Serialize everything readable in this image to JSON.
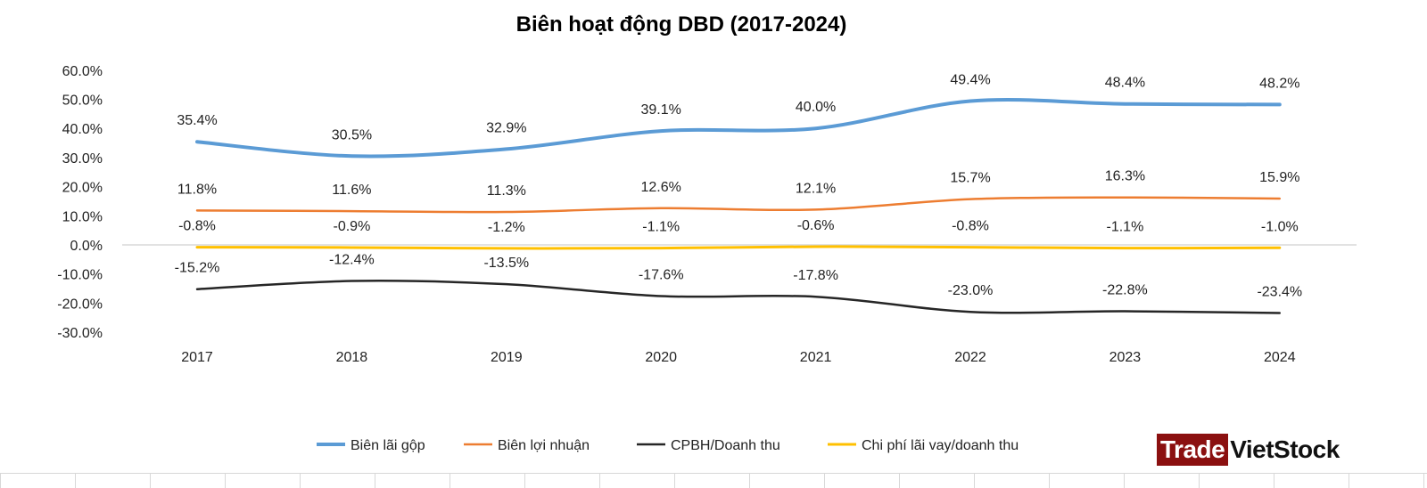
{
  "chart_data": {
    "type": "line",
    "title": "Biên hoạt động DBD (2017-2024)",
    "categories": [
      "2017",
      "2018",
      "2019",
      "2020",
      "2021",
      "2022",
      "2023",
      "2024"
    ],
    "ylim": [
      -30,
      60
    ],
    "yticks": [
      "60.0%",
      "50.0%",
      "40.0%",
      "30.0%",
      "20.0%",
      "10.0%",
      "0.0%",
      "-10.0%",
      "-20.0%",
      "-30.0%"
    ],
    "ytick_values": [
      60,
      50,
      40,
      30,
      20,
      10,
      0,
      -10,
      -20,
      -30
    ],
    "grid": false,
    "smooth": true,
    "legend_position": "bottom",
    "series": [
      {
        "name": "Biên lãi gộp",
        "color": "#5b9bd5",
        "values": [
          35.4,
          30.5,
          32.9,
          39.1,
          40.0,
          49.4,
          48.4,
          48.2
        ],
        "labels": [
          "35.4%",
          "30.5%",
          "32.9%",
          "39.1%",
          "40.0%",
          "49.4%",
          "48.4%",
          "48.2%"
        ]
      },
      {
        "name": "Biên lợi nhuận",
        "color": "#ed7d31",
        "values": [
          11.8,
          11.6,
          11.3,
          12.6,
          12.1,
          15.7,
          16.3,
          15.9
        ],
        "labels": [
          "11.8%",
          "11.6%",
          "11.3%",
          "12.6%",
          "12.1%",
          "15.7%",
          "16.3%",
          "15.9%"
        ]
      },
      {
        "name": "CPBH/Doanh thu",
        "color": "#262626",
        "values": [
          -15.2,
          -12.4,
          -13.5,
          -17.6,
          -17.8,
          -23.0,
          -22.8,
          -23.4
        ],
        "labels": [
          "-15.2%",
          "-12.4%",
          "-13.5%",
          "-17.6%",
          "-17.8%",
          "-23.0%",
          "-22.8%",
          "-23.4%"
        ]
      },
      {
        "name": "Chi phí lãi vay/doanh thu",
        "color": "#ffc000",
        "values": [
          -0.8,
          -0.9,
          -1.2,
          -1.1,
          -0.6,
          -0.8,
          -1.1,
          -1.0
        ],
        "labels": [
          "-0.8%",
          "-0.9%",
          "-1.2%",
          "-1.1%",
          "-0.6%",
          "-0.8%",
          "-1.1%",
          "-1.0%"
        ]
      }
    ]
  },
  "logo": {
    "part1": "Trade",
    "part2": "VietStock",
    "color": "#8b1010"
  }
}
